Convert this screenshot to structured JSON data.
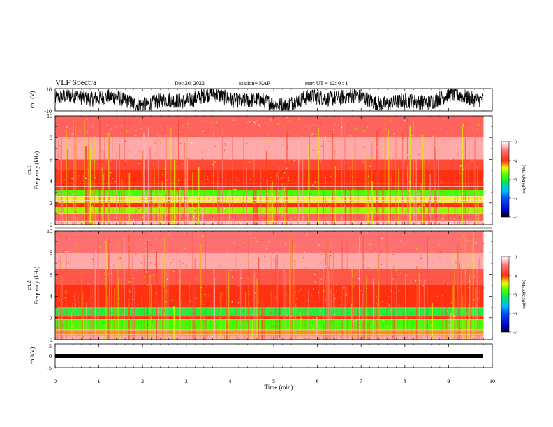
{
  "header": {
    "title": "VLF Spectra",
    "date": "Dec.20, 2022",
    "station": "station= KAP",
    "start": "start UT =   12: 0  : 1"
  },
  "chart_data": [
    {
      "type": "line",
      "name": "ch1-waveform",
      "ylabel": "ch.1(V)",
      "ylim": [
        -10,
        10
      ],
      "xlim": [
        0,
        10
      ],
      "yticklabels": [
        "10",
        "-10"
      ],
      "color": "#000000"
    },
    {
      "type": "heatmap",
      "name": "ch1-spectrogram",
      "ylabel": "ch.1\nFrequency (kHz)",
      "ylim": [
        0,
        10
      ],
      "xlim": [
        0,
        10
      ],
      "yticks": [
        0,
        2,
        4,
        6,
        8,
        10
      ],
      "data_end_x": 9.8,
      "colorbar": {
        "label": "log(PSD)(V²/Hz)",
        "range": [
          -7,
          -3
        ],
        "ticks": [
          "-3",
          "-4",
          "-5",
          "-6",
          "-7"
        ]
      },
      "bands_khz": [
        {
          "from": 0.0,
          "to": 0.3,
          "level": -3.2
        },
        {
          "from": 0.3,
          "to": 1.0,
          "level": -3.6
        },
        {
          "from": 1.0,
          "to": 1.6,
          "level": -4.6
        },
        {
          "from": 1.6,
          "to": 2.0,
          "level": -4.0
        },
        {
          "from": 2.0,
          "to": 2.6,
          "level": -4.4
        },
        {
          "from": 2.6,
          "to": 3.2,
          "level": -4.8
        },
        {
          "from": 3.2,
          "to": 5.0,
          "level": -4.0
        },
        {
          "from": 5.0,
          "to": 6.0,
          "level": -3.8
        },
        {
          "from": 6.0,
          "to": 8.0,
          "level": -3.3
        },
        {
          "from": 8.0,
          "to": 10.0,
          "level": -3.6
        }
      ],
      "lines_khz": [
        0.3,
        0.6,
        1.0,
        2.2,
        2.6,
        2.9,
        3.5,
        3.8
      ]
    },
    {
      "type": "heatmap",
      "name": "ch2-spectrogram",
      "ylabel": "ch.2\nFrequency (kHz)",
      "ylim": [
        0,
        10
      ],
      "xlim": [
        0,
        10
      ],
      "yticks": [
        0,
        2,
        4,
        6,
        8,
        10
      ],
      "data_end_x": 9.8,
      "colorbar": {
        "label": "log(PSD)(V²/Hz)",
        "range": [
          -7,
          -3
        ],
        "ticks": [
          "-3",
          "-4",
          "-5",
          "-6",
          "-7"
        ]
      },
      "bands_khz": [
        {
          "from": 0.0,
          "to": 0.4,
          "level": -3.3
        },
        {
          "from": 0.4,
          "to": 1.0,
          "level": -4.2
        },
        {
          "from": 1.0,
          "to": 1.8,
          "level": -4.8
        },
        {
          "from": 1.8,
          "to": 2.2,
          "level": -4.0
        },
        {
          "from": 2.2,
          "to": 3.0,
          "level": -5.0
        },
        {
          "from": 3.0,
          "to": 5.0,
          "level": -4.0
        },
        {
          "from": 5.0,
          "to": 6.5,
          "level": -3.7
        },
        {
          "from": 6.5,
          "to": 8.0,
          "level": -3.3
        },
        {
          "from": 8.0,
          "to": 10.0,
          "level": -3.5
        }
      ],
      "lines_khz": [
        0.5,
        0.9,
        1.9,
        2.1,
        2.9
      ]
    },
    {
      "type": "line",
      "name": "ch3-waveform",
      "ylabel": "ch.3(V)",
      "ylim": [
        -5,
        5
      ],
      "xlim": [
        0,
        10
      ],
      "yticklabels": [
        "5",
        "0",
        "-5"
      ],
      "color": "#000000"
    }
  ],
  "x_axis": {
    "label": "Time (min)",
    "ticks": [
      "0",
      "1",
      "2",
      "3",
      "4",
      "5",
      "6",
      "7",
      "8",
      "9",
      "10"
    ]
  }
}
